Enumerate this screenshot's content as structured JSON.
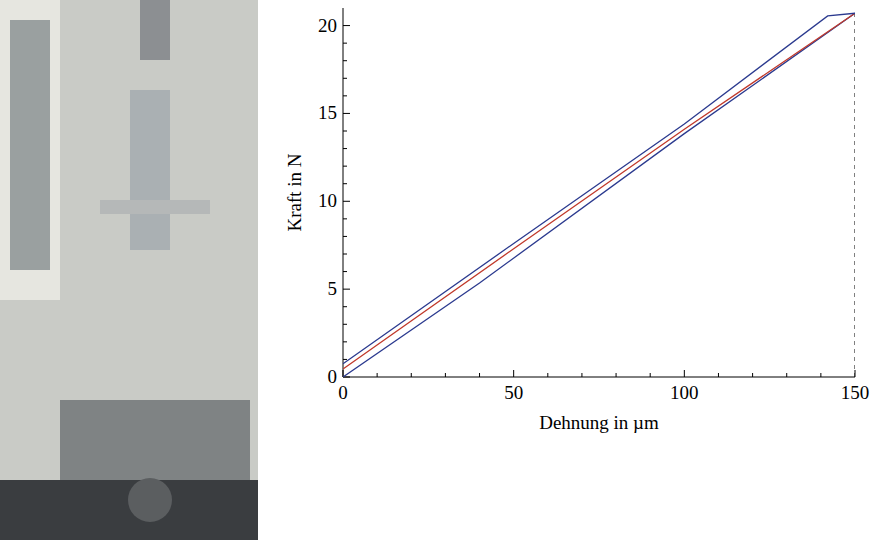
{
  "chart_data": {
    "type": "line",
    "xlabel": "Dehnung in µm",
    "ylabel": "Kraft in N",
    "xlim": [
      0,
      150
    ],
    "ylim": [
      0,
      21
    ],
    "xticks": [
      0,
      50,
      100,
      150
    ],
    "yticks": [
      0,
      5,
      10,
      15,
      20
    ],
    "xminorticks": [
      10,
      20,
      30,
      40,
      60,
      70,
      80,
      90,
      110,
      120,
      130,
      140
    ],
    "yminorticks": [
      1,
      2,
      3,
      4,
      6,
      7,
      8,
      9,
      11,
      12,
      13,
      14,
      16,
      17,
      18,
      19
    ],
    "grid": false,
    "series": [
      {
        "color": "#2b3a8f",
        "x": [
          0,
          40,
          100,
          150
        ],
        "values": [
          0,
          5.35,
          13.85,
          20.7
        ]
      },
      {
        "color": "#c0392b",
        "x": [
          0,
          50,
          100,
          150
        ],
        "values": [
          0.45,
          7.3,
          14.1,
          20.7
        ]
      },
      {
        "color": "#2b3a8f",
        "x": [
          0,
          50,
          100,
          142,
          150
        ],
        "values": [
          0.75,
          7.6,
          14.4,
          20.55,
          20.7
        ]
      }
    ],
    "reference_line": {
      "x": 150,
      "y_end": 20.7,
      "line_style": "dashed"
    }
  }
}
